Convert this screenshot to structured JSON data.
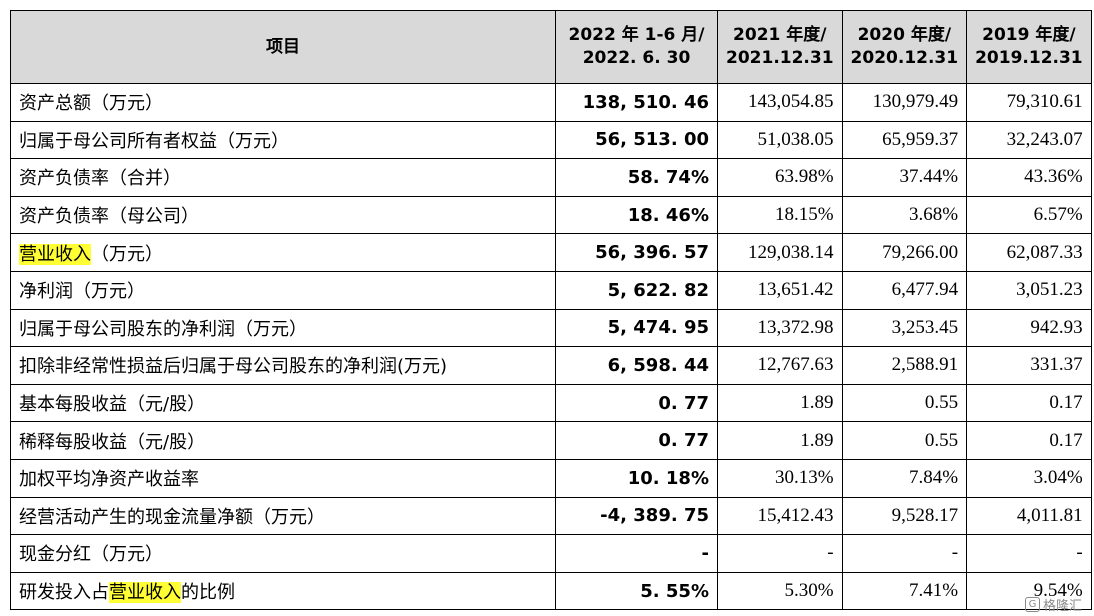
{
  "headers": [
    {
      "line1": "项目",
      "line2": ""
    },
    {
      "line1": "2022 年 1-6 月/",
      "line2": "2022. 6. 30"
    },
    {
      "line1": "2021 年度/",
      "line2": "2021.12.31"
    },
    {
      "line1": "2020 年度/",
      "line2": "2020.12.31"
    },
    {
      "line1": "2019 年度/",
      "line2": "2019.12.31"
    }
  ],
  "rows": [
    {
      "pre": "资产总额（万元）",
      "hl": "",
      "post": "",
      "v2022": "138, 510. 46",
      "v2021": "143,054.85",
      "v2020": "130,979.49",
      "v2019": "79,310.61"
    },
    {
      "pre": "归属于母公司所有者权益（万元）",
      "hl": "",
      "post": "",
      "v2022": "56, 513. 00",
      "v2021": "51,038.05",
      "v2020": "65,959.37",
      "v2019": "32,243.07"
    },
    {
      "pre": "资产负债率（合并）",
      "hl": "",
      "post": "",
      "v2022": "58. 74%",
      "v2021": "63.98%",
      "v2020": "37.44%",
      "v2019": "43.36%"
    },
    {
      "pre": "资产负债率（母公司）",
      "hl": "",
      "post": "",
      "v2022": "18. 46%",
      "v2021": "18.15%",
      "v2020": "3.68%",
      "v2019": "6.57%"
    },
    {
      "pre": "",
      "hl": "营业收入",
      "post": "（万元）",
      "v2022": "56, 396. 57",
      "v2021": "129,038.14",
      "v2020": "79,266.00",
      "v2019": "62,087.33"
    },
    {
      "pre": "净利润（万元）",
      "hl": "",
      "post": "",
      "v2022": "5, 622. 82",
      "v2021": "13,651.42",
      "v2020": "6,477.94",
      "v2019": "3,051.23"
    },
    {
      "pre": "归属于母公司股东的净利润（万元）",
      "hl": "",
      "post": "",
      "v2022": "5, 474. 95",
      "v2021": "13,372.98",
      "v2020": "3,253.45",
      "v2019": "942.93"
    },
    {
      "pre": "扣除非经常性损益后归属于母公司股东的净利润(万元)",
      "hl": "",
      "post": "",
      "v2022": "6, 598. 44",
      "v2021": "12,767.63",
      "v2020": "2,588.91",
      "v2019": "331.37"
    },
    {
      "pre": "基本每股收益（元/股）",
      "hl": "",
      "post": "",
      "v2022": "0. 77",
      "v2021": "1.89",
      "v2020": "0.55",
      "v2019": "0.17"
    },
    {
      "pre": "稀释每股收益（元/股）",
      "hl": "",
      "post": "",
      "v2022": "0. 77",
      "v2021": "1.89",
      "v2020": "0.55",
      "v2019": "0.17"
    },
    {
      "pre": "加权平均净资产收益率",
      "hl": "",
      "post": "",
      "v2022": "10. 18%",
      "v2021": "30.13%",
      "v2020": "7.84%",
      "v2019": "3.04%"
    },
    {
      "pre": "经营活动产生的现金流量净额（万元）",
      "hl": "",
      "post": "",
      "v2022": "-4, 389. 75",
      "v2021": "15,412.43",
      "v2020": "9,528.17",
      "v2019": "4,011.81"
    },
    {
      "pre": "现金分红（万元）",
      "hl": "",
      "post": "",
      "v2022": "-",
      "v2021": "-",
      "v2020": "-",
      "v2019": "-"
    },
    {
      "pre": "研发投入占",
      "hl": "营业收入",
      "post": "的比例",
      "v2022": "5. 55%",
      "v2021": "5.30%",
      "v2020": "7.41%",
      "v2019": "9.54%"
    }
  ],
  "watermark": {
    "icon": "gelonghui-logo-icon",
    "text": "格隆汇"
  },
  "colors": {
    "header_bg": "#d9d9d9",
    "highlight": "#ffff33"
  }
}
